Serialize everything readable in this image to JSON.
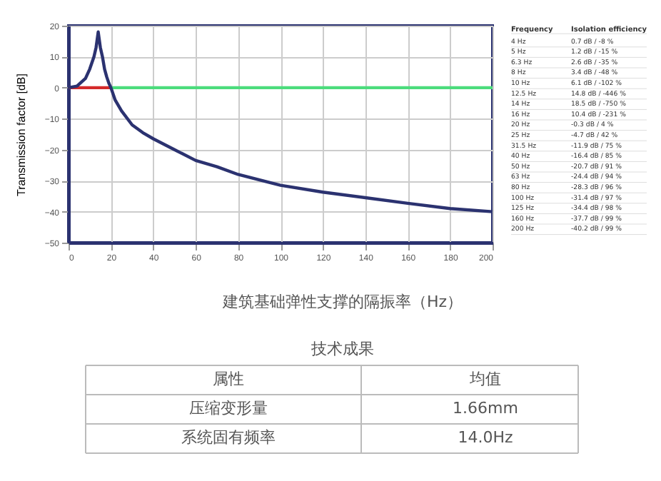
{
  "chart_data": {
    "type": "line",
    "ylabel": "Transmission factor [dB]",
    "xlim": [
      0,
      200
    ],
    "xticks": [
      0,
      20,
      40,
      60,
      80,
      100,
      120,
      140,
      160,
      180,
      200
    ],
    "ylim": [
      -50,
      20
    ],
    "yticks": [
      -50,
      -40,
      -30,
      -20,
      -10,
      0,
      10,
      20
    ],
    "grid": true,
    "series": [
      {
        "color": "#d42a2a",
        "x": [
          0,
          20
        ],
        "values": [
          0,
          0
        ]
      },
      {
        "color": "#4cdc7c",
        "x": [
          20,
          200
        ],
        "values": [
          0,
          0
        ]
      },
      {
        "color": "#2b3270",
        "x": [
          0,
          4,
          8,
          10,
          12,
          13,
          14,
          15,
          16,
          17,
          18,
          19,
          20,
          22,
          25,
          30,
          35,
          40,
          50,
          60,
          70,
          80,
          100,
          120,
          140,
          160,
          180,
          200
        ],
        "values": [
          0,
          0.5,
          3,
          6,
          10,
          13,
          18,
          13,
          10,
          6,
          3.5,
          1.5,
          0,
          -4,
          -7.5,
          -12,
          -14.5,
          -16.5,
          -20,
          -23.5,
          -25.5,
          -28,
          -31.5,
          -33.7,
          -35.5,
          -37.3,
          -39,
          -40
        ]
      }
    ],
    "annotations": [
      "Frequency",
      "Isolation efficiency",
      "4 Hz",
      "0.7 dB / -8 %",
      "5 Hz",
      "1.2 dB / -15 %",
      "6.3 Hz",
      "2.6 dB / -35 %",
      "8 Hz",
      "3.4 dB / -48 %",
      "10 Hz",
      "6.1 dB / -102 %",
      "12.5 Hz",
      "14.8 dB / -446 %",
      "14 Hz",
      "18.5 dB / -750 %",
      "16 Hz",
      "10.4 dB / -231 %",
      "20 Hz",
      "-0.3 dB / 4 %",
      "25 Hz",
      "-4.7 dB / 42 %",
      "31.5 Hz",
      "-11.9 dB / 75 %",
      "40 Hz",
      "-16.4 dB / 85 %",
      "50 Hz",
      "-20.7 dB / 91 %",
      "63 Hz",
      "-24.4 dB / 94 %",
      "80 Hz",
      "-28.3 dB / 96 %",
      "100 Hz",
      "-31.4 dB / 97 %",
      "125 Hz",
      "-34.4 dB / 98 %",
      "160 Hz",
      "-37.7 dB / 99 %",
      "200 Hz",
      "-40.2 dB / 99 %",
      "建筑基础弹性支撑的隔振率（Hz）",
      "技术成果",
      "属性",
      "均值",
      "压缩变形量",
      "1.66mm",
      "系统固有频率",
      "14.0Hz"
    ]
  }
}
